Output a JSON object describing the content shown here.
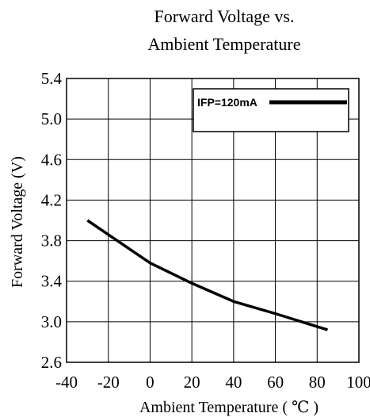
{
  "chart_data": {
    "type": "line",
    "title_lines": [
      "Forward Voltage vs.",
      "Ambient Temperature"
    ],
    "xlabel": "Ambient Temperature ( ℃ )",
    "ylabel": "Forward Voltage (V)",
    "xlim": [
      -40,
      100
    ],
    "ylim": [
      2.6,
      5.4
    ],
    "x_ticks": [
      "-40",
      "-20",
      "0",
      "20",
      "40",
      "60",
      "80",
      "100"
    ],
    "y_ticks": [
      "2.6",
      "3.0",
      "3.4",
      "3.8",
      "4.2",
      "4.6",
      "5.0",
      "5.4"
    ],
    "x_tick_values": [
      -40,
      -20,
      0,
      20,
      40,
      60,
      80,
      100
    ],
    "y_tick_values": [
      2.6,
      3.0,
      3.4,
      3.8,
      4.2,
      4.6,
      5.0,
      5.4
    ],
    "grid": true,
    "legend_position": "top-right",
    "series": [
      {
        "name": "IFP=120mA",
        "color": "#000000",
        "x": [
          -30,
          -20,
          0,
          20,
          40,
          60,
          85
        ],
        "y": [
          4.0,
          3.86,
          3.58,
          3.38,
          3.2,
          3.08,
          2.92
        ]
      }
    ]
  }
}
